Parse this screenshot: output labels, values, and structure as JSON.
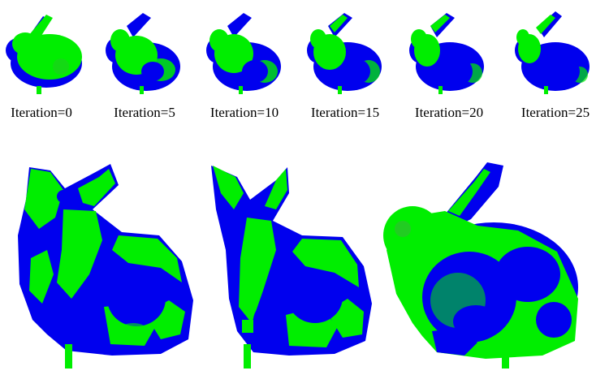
{
  "captions": [
    "Iteration=0",
    "Iteration=5",
    "Iteration=10",
    "Iteration=15",
    "Iteration=20",
    "Iteration=25"
  ],
  "colors": {
    "source_cloud": "#00ee00",
    "target_cloud": "#0000ee",
    "background": "#ffffff"
  }
}
